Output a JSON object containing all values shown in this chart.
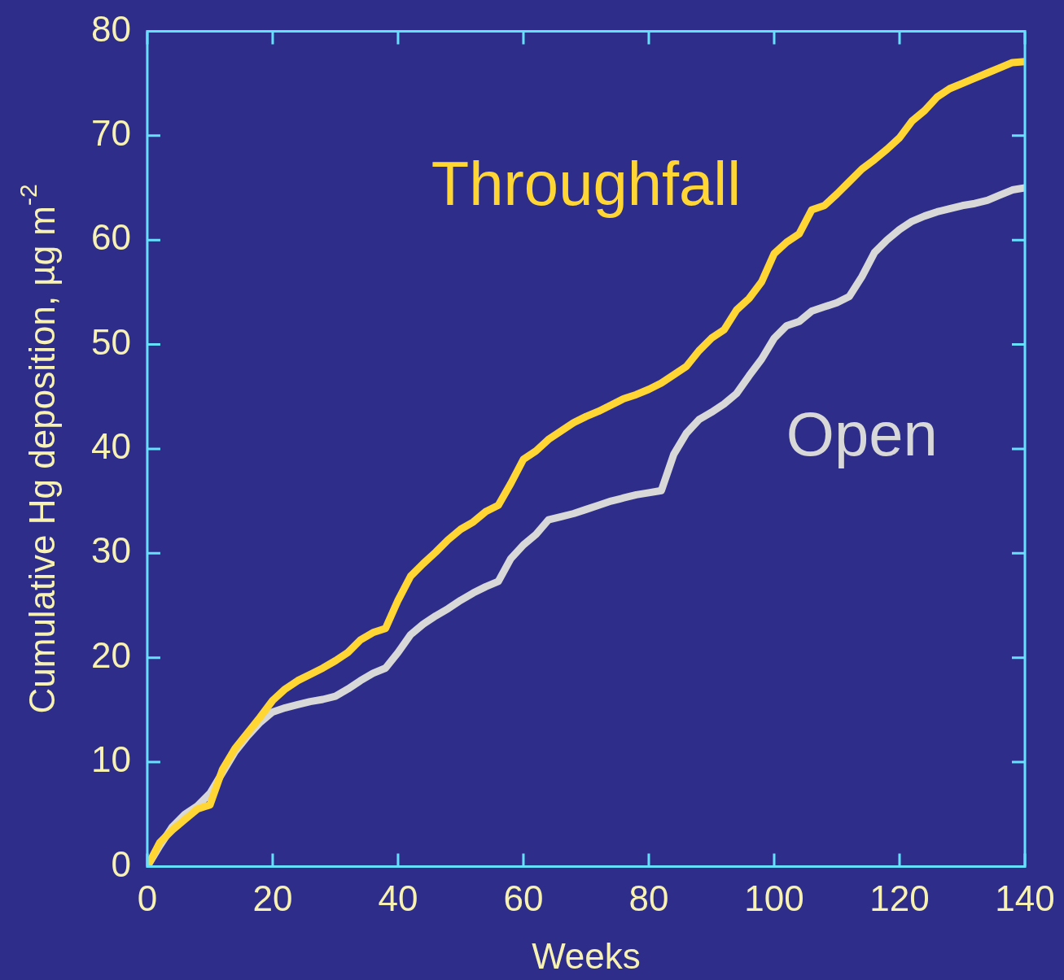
{
  "chart_data": {
    "type": "line",
    "xlabel": "Weeks",
    "ylabel": "Cumulative Hg deposition, µg m$^{-2}$",
    "xlim": [
      0,
      140
    ],
    "ylim": [
      0,
      80
    ],
    "xticks": [
      0,
      20,
      40,
      60,
      80,
      100,
      120,
      140
    ],
    "yticks": [
      0,
      10,
      20,
      30,
      40,
      50,
      60,
      70,
      80
    ],
    "grid": false,
    "legend": false,
    "marker": "none",
    "line_style": "solid",
    "x": [
      0,
      2,
      4,
      6,
      8,
      10,
      12,
      14,
      16,
      18,
      20,
      22,
      24,
      26,
      28,
      30,
      32,
      34,
      36,
      38,
      40,
      42,
      44,
      46,
      48,
      50,
      52,
      54,
      56,
      58,
      60,
      62,
      64,
      66,
      68,
      70,
      72,
      74,
      76,
      78,
      80,
      82,
      84,
      86,
      88,
      90,
      92,
      94,
      96,
      98,
      100,
      102,
      104,
      106,
      108,
      110,
      112,
      114,
      116,
      118,
      120,
      122,
      124,
      126,
      128,
      130,
      132,
      134,
      136,
      138,
      140
    ],
    "series": [
      {
        "name": "Throughfall",
        "color": "#ffd633",
        "values": [
          0,
          2.3,
          3.5,
          4.5,
          5.5,
          5.9,
          9.3,
          11.3,
          12.8,
          14.3,
          15.9,
          17,
          17.8,
          18.4,
          19,
          19.7,
          20.5,
          21.7,
          22.4,
          22.8,
          25.5,
          27.8,
          29,
          30.1,
          31.3,
          32.3,
          33,
          34,
          34.6,
          36.7,
          39,
          39.8,
          40.9,
          41.7,
          42.5,
          43.1,
          43.6,
          44.2,
          44.8,
          45.2,
          45.7,
          46.3,
          47.1,
          47.9,
          49.4,
          50.6,
          51.4,
          53.3,
          54.4,
          56,
          58.7,
          59.8,
          60.6,
          62.9,
          63.3,
          64.4,
          65.6,
          66.8,
          67.7,
          68.7,
          69.8,
          71.4,
          72.4,
          73.7,
          74.5,
          75,
          75.5,
          76,
          76.5,
          77,
          77.1
        ]
      },
      {
        "name": "Open",
        "color": "#d8d8d8",
        "values": [
          0,
          2,
          3.8,
          5,
          5.8,
          7,
          9,
          11,
          12.5,
          13.8,
          14.8,
          15.2,
          15.5,
          15.8,
          16,
          16.3,
          17,
          17.8,
          18.5,
          19,
          20.5,
          22.2,
          23.2,
          24,
          24.7,
          25.5,
          26.2,
          26.8,
          27.3,
          29.5,
          30.8,
          31.8,
          33.2,
          33.5,
          33.8,
          34.2,
          34.6,
          35,
          35.3,
          35.6,
          35.8,
          36,
          39.5,
          41.5,
          42.8,
          43.5,
          44.3,
          45.3,
          47,
          48.6,
          50.6,
          51.8,
          52.2,
          53.2,
          53.6,
          54,
          54.6,
          56.5,
          58.8,
          60,
          61,
          61.8,
          62.3,
          62.7,
          63,
          63.3,
          63.5,
          63.8,
          64.3,
          64.8,
          65
        ]
      }
    ]
  }
}
